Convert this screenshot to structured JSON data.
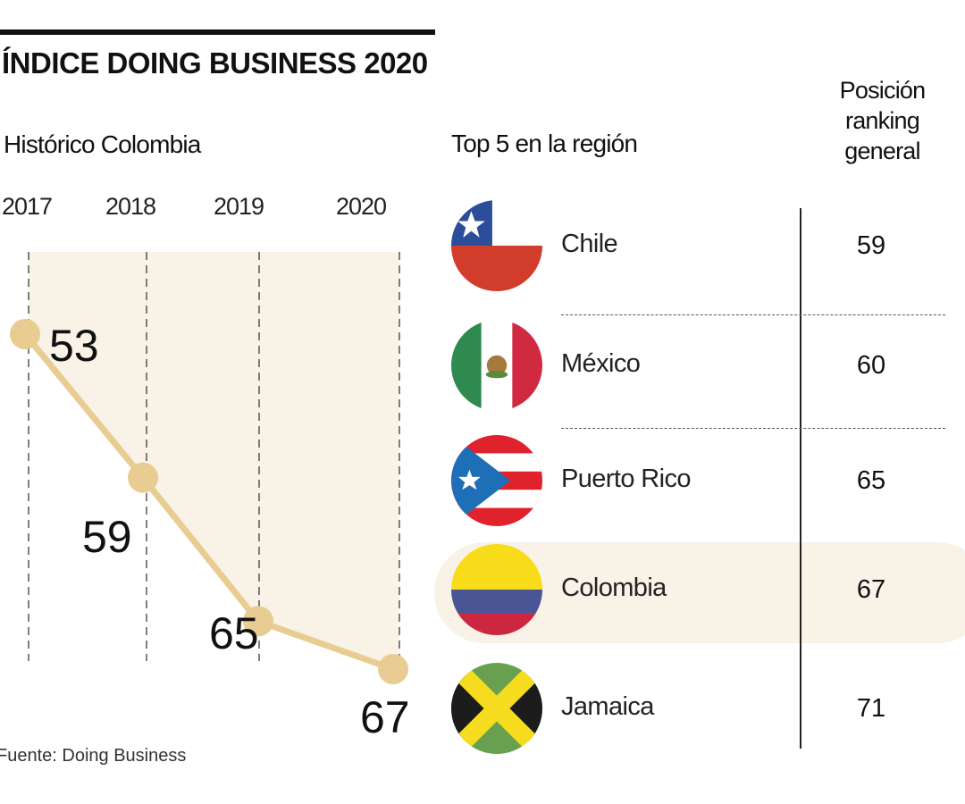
{
  "title": "ÍNDICE DOING BUSINESS 2020",
  "left_subtitle": "Histórico Colombia",
  "right_subtitle": "Top 5 en la región",
  "rank_header": [
    "Posición",
    "ranking",
    "general"
  ],
  "source": "Fuente: Doing Business",
  "colors": {
    "line": "#e8cc92",
    "area": "#f8f2e7",
    "highlight": "#f8f2e7"
  },
  "chart_data": {
    "type": "line",
    "title": "Histórico Colombia",
    "categories": [
      "2017",
      "2018",
      "2019",
      "2020"
    ],
    "values": [
      53,
      59,
      65,
      67
    ],
    "data_labels": [
      "53",
      "59",
      "65",
      "67"
    ],
    "y_inverted": true,
    "grid": "dashed vertical lines at each year"
  },
  "ranking": [
    {
      "country": "Chile",
      "rank": "59",
      "flag": "chile-flag",
      "highlighted": false
    },
    {
      "country": "México",
      "rank": "60",
      "flag": "mexico-flag",
      "highlighted": false
    },
    {
      "country": "Puerto Rico",
      "rank": "65",
      "flag": "puerto-rico-flag",
      "highlighted": false
    },
    {
      "country": "Colombia",
      "rank": "67",
      "flag": "colombia-flag",
      "highlighted": true
    },
    {
      "country": "Jamaica",
      "rank": "71",
      "flag": "jamaica-flag",
      "highlighted": false
    }
  ]
}
